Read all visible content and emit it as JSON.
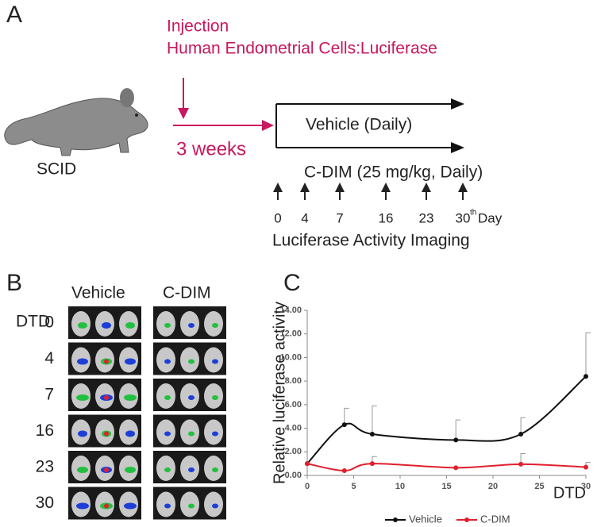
{
  "panel_a": {
    "label": "A",
    "injection": "Injection",
    "cells": "Human Endometrial Cells:Luciferase",
    "weeks": "3 weeks",
    "strain": "SCID",
    "vehicle": "Vehicle (Daily)",
    "cdim": "C-DIM (25 mg/kg, Daily)",
    "days": [
      "0",
      "4",
      "7",
      "16",
      "23",
      "30"
    ],
    "suffix": "th",
    "day": "Day",
    "imaging": "Luciferase Activity Imaging"
  },
  "panel_b": {
    "label": "B",
    "row_header": "DTD",
    "columns": [
      "Vehicle",
      "C-DIM"
    ],
    "rows": [
      "0",
      "4",
      "7",
      "16",
      "23",
      "30"
    ]
  },
  "panel_c_label": "C",
  "chart_data": {
    "type": "line",
    "xlabel": "DTD",
    "ylabel": "Relative luciferase activity",
    "x": [
      0,
      4,
      7,
      16,
      23,
      30
    ],
    "series": [
      {
        "name": "Vehicle",
        "color": "#111111",
        "values": [
          1.0,
          4.3,
          3.5,
          3.0,
          3.5,
          8.4
        ],
        "error": [
          null,
          1.4,
          2.4,
          1.7,
          1.4,
          3.7
        ]
      },
      {
        "name": "C-DIM",
        "color": "#e0202e",
        "values": [
          1.0,
          0.4,
          1.0,
          0.65,
          0.95,
          0.7
        ],
        "error": [
          null,
          null,
          0.6,
          null,
          0.9,
          0.4
        ]
      }
    ],
    "xlim": [
      0,
      30
    ],
    "xticks": [
      0,
      5,
      10,
      15,
      20,
      25,
      30
    ],
    "ylim": [
      0,
      14
    ],
    "yticks": [
      {
        "value": 0,
        "label": "0.00"
      },
      {
        "value": 2,
        "label": "2.00"
      },
      {
        "value": 4,
        "label": "4.00"
      },
      {
        "value": 6,
        "label": "6.00"
      },
      {
        "value": 8,
        "label": "8.00"
      },
      {
        "value": 10,
        "label": "10.00"
      },
      {
        "value": 12,
        "label": "12.00"
      },
      {
        "value": 14,
        "label": "14.00"
      }
    ],
    "legend": "bottom"
  }
}
